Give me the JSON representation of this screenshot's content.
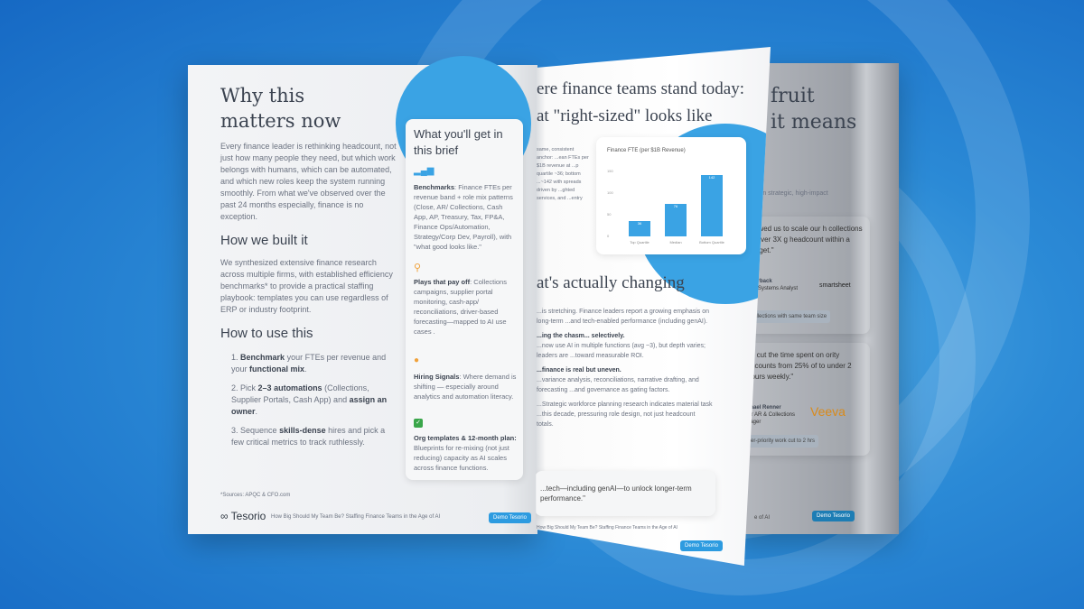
{
  "left_page": {
    "title": "Why this matters now",
    "intro": "Every finance leader is rethinking headcount, not just how many people they need, but which work belongs with humans, which can be automated, and which new roles keep the system running smoothly. From what we've observed over the past 24 months especially, finance is no exception.",
    "how_built_heading": "How we built it",
    "how_built_text": "We synthesized extensive finance research across multiple firms, with established efficiency benchmarks* to provide a practical staffing playbook: templates you can use regardless of ERP or industry footprint.",
    "how_use_heading": "How to use this",
    "steps": [
      {
        "num": "1.",
        "bold": "Benchmark",
        "text": " your FTEs per revenue and your ",
        "bold2": "functional mix",
        "tail": "."
      },
      {
        "num": "2.",
        "text": "Pick ",
        "bold": "2–3 automations",
        "text2": " (Collections, Supplier Portals, Cash App) and ",
        "bold2": "assign an owner",
        "tail": "."
      },
      {
        "num": "3.",
        "text": "Sequence ",
        "bold": "skills-dense",
        "text2": " hires and pick a few critical metrics to track ruthlessly."
      }
    ],
    "sources": "*Sources: APQC & CFO.com",
    "brand": "Tesorio",
    "footer": "How Big Should My Team Be? Staffing Finance Teams in the Age of AI",
    "demo_button": "Demo Tesorio",
    "brief": {
      "title": "What you'll get in this brief",
      "items": [
        {
          "icon": "bar-chart-icon",
          "color": "#3aa3e4",
          "bold": "Benchmarks",
          "text": ": Finance FTEs per revenue band + role mix patterns (Close, AR/ Collections, Cash App, AP, Treasury, Tax, FP&A, Finance Ops/Automation, Strategy/Corp Dev, Payroll), with \"what good looks like.\""
        },
        {
          "icon": "search-icon",
          "color": "#f0a23b",
          "bold": "Plays that pay off",
          "text": ": Collections campaigns, supplier portal monitoring, cash-app/ reconciliations, driver-based forecasting—mapped to AI use cases ."
        },
        {
          "icon": "people-icon",
          "color": "#f0a23b",
          "bold": "Hiring Signals",
          "text": ": Where demand is shifting — especially around analytics and automation literacy."
        },
        {
          "icon": "checklist-icon",
          "color": "#3aa64a",
          "bold": "Org templates & 12-month plan:",
          "text": " Blueprints for re-mixing (not just reducing) capacity as AI scales across finance functions."
        }
      ]
    }
  },
  "middle_page": {
    "title1": "ere finance teams stand today:",
    "title2": "at \"right-sized\" looks like",
    "side_text": "same, consistent anchor: ...ean FTEs per $1B revenue at ...p quartile ~36; bottom ...~142 with spreads driven by ...ghted services, and ...entry",
    "section": "at's actually changing",
    "p1": "...is stretching. Finance leaders report a growing emphasis on long-term ...and tech-enabled performance (including genAI).",
    "p2h": "...ing the chasm... selectively.",
    "p2": "...now use AI in multiple functions (avg ~3), but depth varies; leaders are ...toward measurable ROI.",
    "p3h": "...finance is real but uneven.",
    "p3": "...variance analysis, reconciliations, narrative drafting, and forecasting ...and governance as gating factors.",
    "p4": "...Strategic workforce planning research indicates material task ...this decade, pressuring role design, not just headcount totals.",
    "quote": "...tech—including genAI—to unlock longer-term performance.\"",
    "footer": "How Big Should My Team Be? Staffing Finance Teams in the Age of AI",
    "demo_button": "Demo Tesorio"
  },
  "chart_data": {
    "type": "bar",
    "title": "Finance FTE (per $1B Revenue)",
    "categories": [
      "Top Quartile",
      "Median",
      "Bottom Quartile"
    ],
    "values": [
      36,
      76,
      142
    ],
    "yticks": [
      "0",
      "50",
      "100",
      "150"
    ],
    "ylim": [
      0,
      150
    ],
    "color": "#3aa3e4"
  },
  "right_page": {
    "title1": "fruit",
    "title2": "it means",
    "text": "s on strategic, high-impact",
    "quote1": "allowed us to scale our h collections by over 3X g headcount within a budget.\"",
    "person1": "Utterback",
    "role1": "al & Systems Analyst",
    "logo1": "smartsheet",
    "tag1": "collections with same team size",
    "quote2": "as cut the time spent on ority accounts from 25% of to under 2 hours weekly.\"",
    "person2": "chael Renner",
    "role2": "ior AR & Collections nager",
    "logo2": "Veeva",
    "tag2": "er-priority work cut to 2 hrs",
    "footer": "e of AI",
    "demo_button": "Demo Tesorio"
  }
}
